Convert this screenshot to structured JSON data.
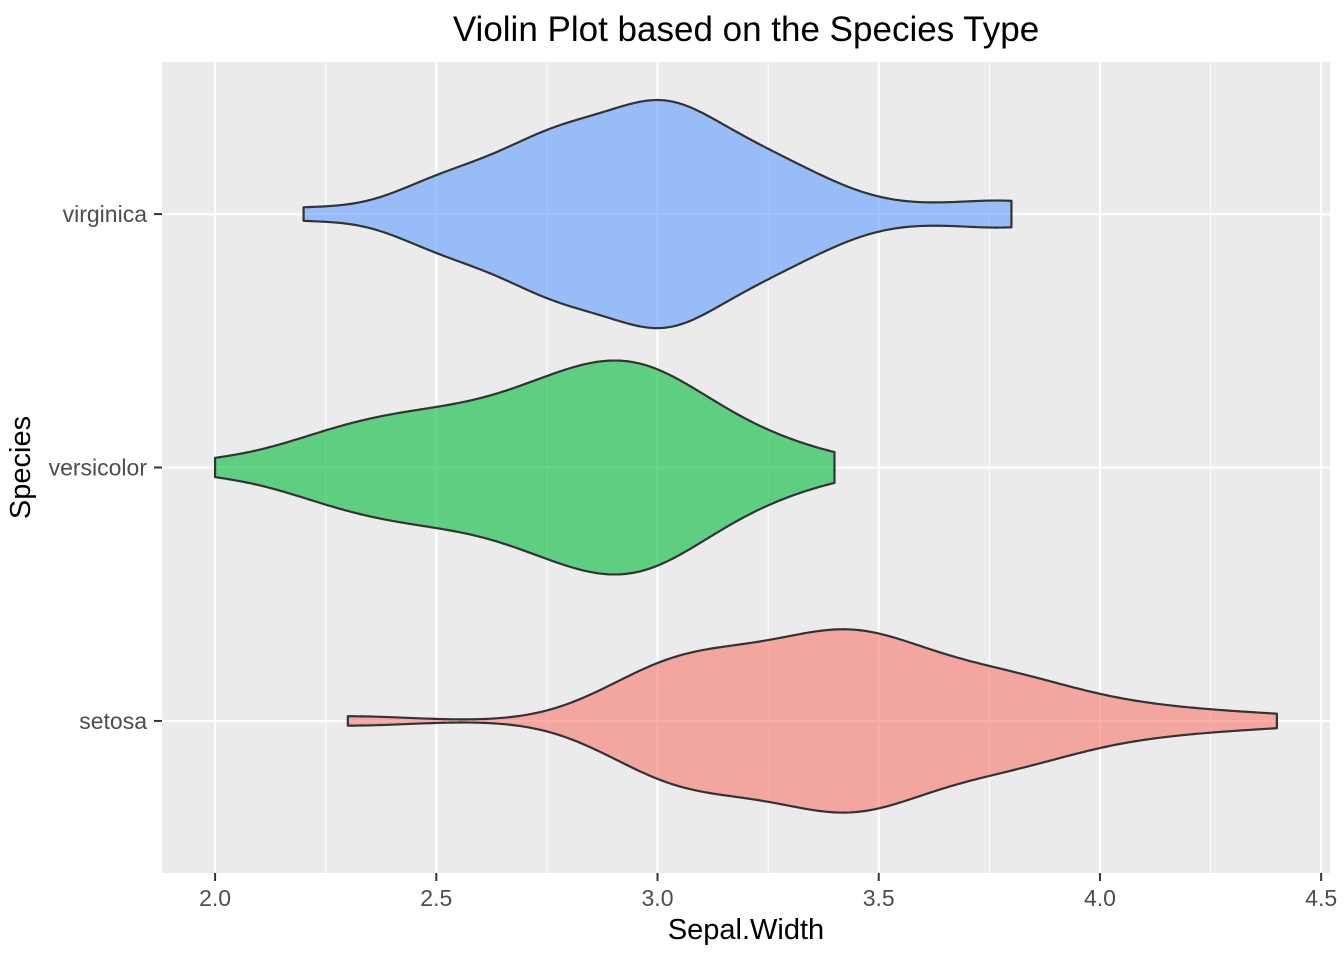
{
  "title": "Violin Plot based on the Species Type",
  "x_axis": {
    "label": "Sepal.Width",
    "tick_labels": [
      "2.0",
      "2.5",
      "3.0",
      "3.5",
      "4.0",
      "4.5"
    ]
  },
  "y_axis": {
    "label": "Species",
    "tick_labels": [
      "setosa",
      "versicolor",
      "virginica"
    ]
  },
  "colors": {
    "panel_background": "#EBEBEB",
    "major_gridline": "#FFFFFF",
    "minor_gridline": "#FFFFFF",
    "tick_mark": "#333333",
    "violin_outline": "#333333",
    "tick_label": "#4D4D4D",
    "title": "#000000"
  },
  "chart_data": {
    "type": "violin",
    "title": "Violin Plot based on the Species Type",
    "xlabel": "Sepal.Width",
    "ylabel": "Species",
    "orientation": "horizontal",
    "grid": true,
    "legend": "none",
    "xlim": [
      1.88,
      4.52
    ],
    "x_major_ticks": [
      2.0,
      2.5,
      3.0,
      3.5,
      4.0,
      4.5
    ],
    "x_minor_ticks": [
      2.25,
      2.75,
      3.25,
      3.75,
      4.25
    ],
    "kde": {
      "bandwidth_rule": "nrd0",
      "trim": true,
      "scale": "area",
      "violin_width": 0.9
    },
    "fill_alpha": 0.6,
    "series": [
      {
        "name": "setosa",
        "row": 1,
        "fill": "#F8766D",
        "range": [
          2.3,
          4.4
        ],
        "peak_x": 3.4,
        "values": [
          3.5,
          3.0,
          3.2,
          3.1,
          3.6,
          3.9,
          3.4,
          3.4,
          2.9,
          3.1,
          3.7,
          3.4,
          3.0,
          3.0,
          4.0,
          4.4,
          3.9,
          3.5,
          3.8,
          3.8,
          3.4,
          3.7,
          3.6,
          3.3,
          3.4,
          3.0,
          3.4,
          3.5,
          3.4,
          3.2,
          3.1,
          3.4,
          4.1,
          4.2,
          3.1,
          3.2,
          3.5,
          3.6,
          3.0,
          3.4,
          3.5,
          2.3,
          3.2,
          3.5,
          3.8,
          3.0,
          3.8,
          3.2,
          3.7,
          3.3
        ]
      },
      {
        "name": "versicolor",
        "row": 2,
        "fill": "#00BA38",
        "range": [
          2.0,
          3.4
        ],
        "peak_x": 2.9,
        "values": [
          3.2,
          3.2,
          3.1,
          2.3,
          2.8,
          2.8,
          3.3,
          2.4,
          2.9,
          2.7,
          2.0,
          3.0,
          2.2,
          2.9,
          2.9,
          3.1,
          3.0,
          2.7,
          2.2,
          2.5,
          3.2,
          2.8,
          2.5,
          2.8,
          2.9,
          3.0,
          2.8,
          3.0,
          2.9,
          2.6,
          2.4,
          2.4,
          2.7,
          2.7,
          3.0,
          3.4,
          3.1,
          2.3,
          3.0,
          2.5,
          2.6,
          3.0,
          2.6,
          2.3,
          2.7,
          3.0,
          2.9,
          2.9,
          2.5,
          2.8
        ]
      },
      {
        "name": "virginica",
        "row": 3,
        "fill": "#619CFF",
        "range": [
          2.2,
          3.8
        ],
        "peak_x": 3.0,
        "values": [
          3.3,
          2.7,
          3.0,
          2.9,
          3.0,
          3.0,
          2.5,
          2.9,
          2.5,
          3.6,
          3.2,
          2.7,
          3.0,
          2.5,
          2.8,
          3.2,
          3.0,
          3.8,
          2.6,
          2.2,
          3.2,
          2.8,
          2.8,
          2.7,
          3.3,
          3.2,
          2.8,
          3.0,
          2.8,
          3.0,
          2.8,
          3.8,
          2.8,
          2.8,
          2.6,
          3.0,
          3.4,
          3.1,
          3.0,
          3.1,
          3.1,
          3.1,
          2.7,
          3.2,
          3.3,
          3.0,
          2.5,
          3.0,
          3.4,
          3.0
        ]
      }
    ]
  }
}
